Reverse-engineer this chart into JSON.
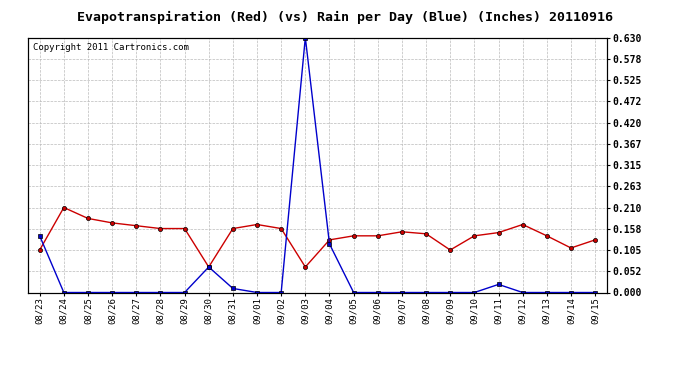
{
  "title": "Evapotranspiration (Red) (vs) Rain per Day (Blue) (Inches) 20110916",
  "copyright": "Copyright 2011 Cartronics.com",
  "dates": [
    "08/23",
    "08/24",
    "08/25",
    "08/26",
    "08/27",
    "08/28",
    "08/29",
    "08/30",
    "08/31",
    "09/01",
    "09/02",
    "09/03",
    "09/04",
    "09/05",
    "09/06",
    "09/07",
    "09/08",
    "09/09",
    "09/10",
    "09/11",
    "09/12",
    "09/13",
    "09/14",
    "09/15"
  ],
  "red_values": [
    0.105,
    0.21,
    0.183,
    0.172,
    0.165,
    0.158,
    0.158,
    0.063,
    0.158,
    0.168,
    0.158,
    0.063,
    0.13,
    0.14,
    0.14,
    0.15,
    0.145,
    0.105,
    0.14,
    0.148,
    0.168,
    0.14,
    0.11,
    0.13
  ],
  "blue_values": [
    0.14,
    0.0,
    0.0,
    0.0,
    0.0,
    0.0,
    0.0,
    0.063,
    0.01,
    0.0,
    0.0,
    0.63,
    0.12,
    0.0,
    0.0,
    0.0,
    0.0,
    0.0,
    0.0,
    0.02,
    0.0,
    0.0,
    0.0,
    0.0
  ],
  "ylim": [
    0.0,
    0.63
  ],
  "yticks": [
    0.0,
    0.052,
    0.105,
    0.158,
    0.21,
    0.263,
    0.315,
    0.367,
    0.42,
    0.472,
    0.525,
    0.578,
    0.63
  ],
  "red_color": "#cc0000",
  "blue_color": "#0000cc",
  "bg_color": "#ffffff",
  "grid_color": "#bbbbbb",
  "title_fontsize": 9.5,
  "copyright_fontsize": 6.5,
  "tick_fontsize": 6.5,
  "ytick_fontsize": 7.0
}
